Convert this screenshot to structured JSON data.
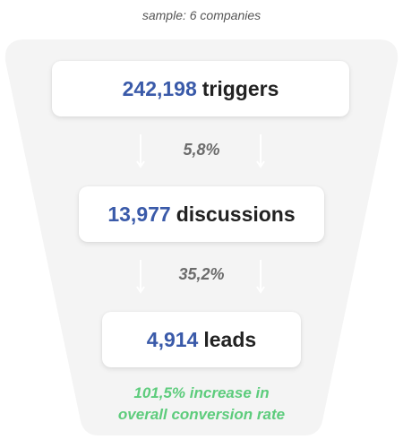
{
  "sample_note": "sample: 6 companies",
  "stages": [
    {
      "value": "242,198",
      "label": "triggers"
    },
    {
      "value": "13,977",
      "label": "discussions"
    },
    {
      "value": "4,914",
      "label": "leads"
    }
  ],
  "rates": [
    "5,8%",
    "35,2%"
  ],
  "conversion_note": {
    "line1": "101,5% increase in",
    "line2": "overall conversion rate"
  },
  "colors": {
    "value_blue": "#3a5aa9",
    "label_dark": "#222222",
    "rate_gray": "#6b6b6b",
    "highlight_green": "#5dcc7c",
    "funnel_background": "#f4f4f4"
  }
}
